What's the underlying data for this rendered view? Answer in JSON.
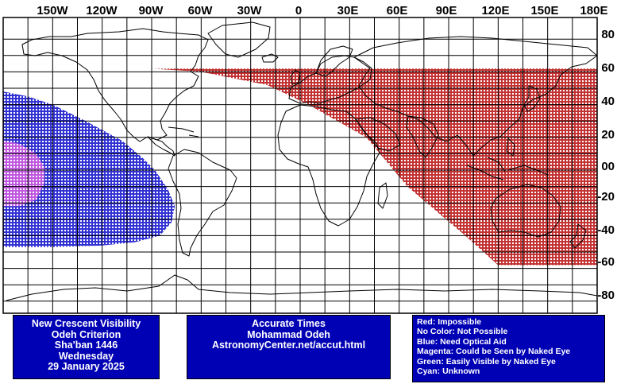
{
  "map": {
    "lon_labels": [
      "150W",
      "120W",
      "90W",
      "60W",
      "30W",
      "0",
      "30E",
      "60E",
      "90E",
      "120E",
      "150E",
      "180E"
    ],
    "lat_labels": [
      "80",
      "60",
      "40",
      "20",
      "00",
      "-20",
      "-40",
      "-60",
      "-80"
    ],
    "colors": {
      "impossible": "#b40000",
      "need_optical_aid": "#0000c8",
      "naked_eye": "#e060e0",
      "land_outline": "#000000",
      "grid": "#000000"
    },
    "zones": [
      {
        "name": "impossible",
        "color": "impossible",
        "polygon": [
          [
            -120,
            62
          ],
          [
            60,
            62
          ],
          [
            180,
            62
          ],
          [
            180,
            -58
          ],
          [
            120,
            -58
          ],
          [
            100,
            -40
          ],
          [
            65,
            -10
          ],
          [
            40,
            20
          ],
          [
            5,
            40
          ],
          [
            -20,
            52
          ],
          [
            -60,
            60
          ],
          [
            -90,
            62
          ],
          [
            -120,
            62
          ]
        ]
      },
      {
        "name": "need_optical_aid",
        "color": "need_optical_aid",
        "polygon": [
          [
            -180,
            48
          ],
          [
            -165,
            45
          ],
          [
            -150,
            40
          ],
          [
            -130,
            30
          ],
          [
            -108,
            18
          ],
          [
            -96,
            8
          ],
          [
            -88,
            0
          ],
          [
            -80,
            -12
          ],
          [
            -76,
            -22
          ],
          [
            -78,
            -32
          ],
          [
            -85,
            -40
          ],
          [
            -100,
            -44
          ],
          [
            -120,
            -46
          ],
          [
            -150,
            -47
          ],
          [
            -180,
            -47
          ]
        ]
      },
      {
        "name": "naked_eye",
        "color": "naked_eye",
        "polygon": [
          [
            -180,
            18
          ],
          [
            -170,
            16
          ],
          [
            -160,
            10
          ],
          [
            -155,
            2
          ],
          [
            -155,
            -8
          ],
          [
            -160,
            -18
          ],
          [
            -170,
            -22
          ],
          [
            -180,
            -22
          ]
        ]
      }
    ]
  },
  "panels": {
    "left": {
      "line1": "New Crescent Visibility",
      "line2": "Odeh Criterion",
      "line3": "Sha'ban 1446",
      "line4": "Wednesday",
      "line5": "29 January 2025"
    },
    "middle": {
      "line1": "Accurate Times",
      "line2": "Mohammad Odeh",
      "line3": "AstronomyCenter.net/accut.html"
    },
    "legend": [
      "Red: Impossible",
      "No Color: Not Possible",
      "Blue: Need Optical Aid",
      "Magenta: Could be Seen by Naked Eye",
      "Green: Easily Visible by Naked Eye",
      "Cyan: Unknown"
    ]
  }
}
